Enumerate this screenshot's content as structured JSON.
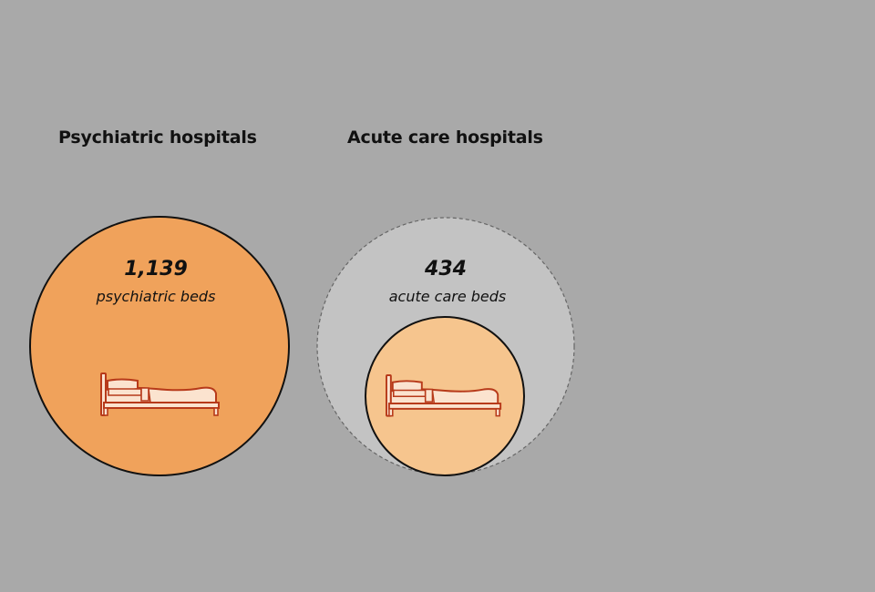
{
  "groups": [
    {
      "heading": "Psychiatric hospitals",
      "count": "1,139",
      "unit": "psychiatric beds",
      "bed_icon": "bed-icon"
    },
    {
      "heading": "Acute care hospitals",
      "count": "434",
      "unit": "acute care beds",
      "bed_icon": "bed-icon"
    }
  ],
  "colors": {
    "background": "#a9a9a9",
    "psychiatric_circle": "#f0a25b",
    "acute_outer_circle": "#c3c3c3",
    "acute_inner_circle": "#f6c58e",
    "bed_stroke": "#b73a1a",
    "bed_fill": "#fbe3cf"
  }
}
